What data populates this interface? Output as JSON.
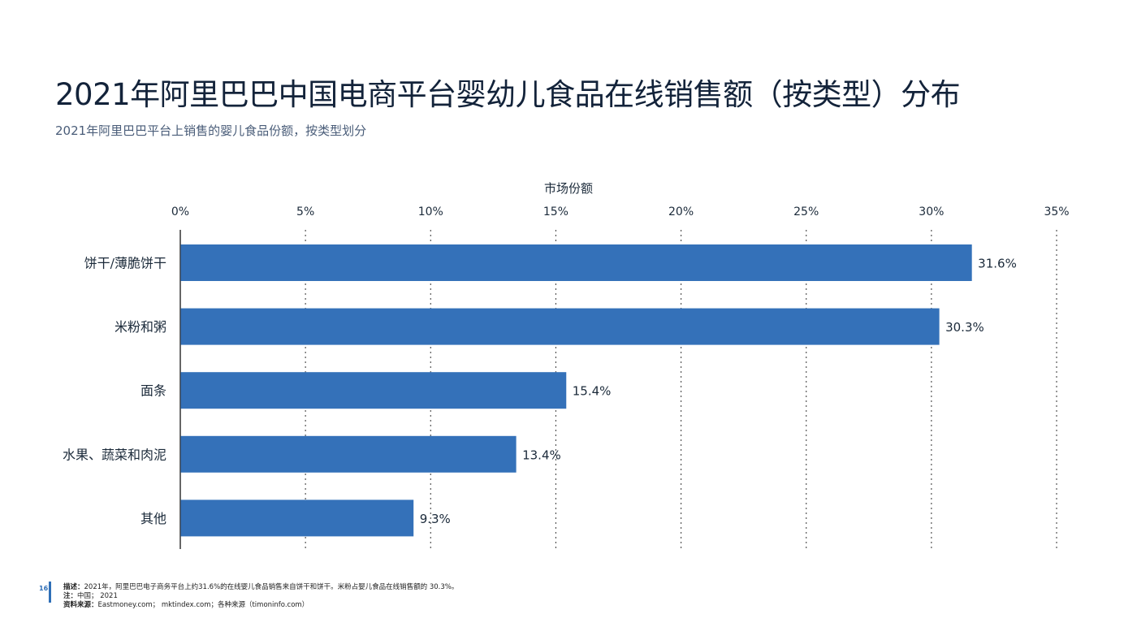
{
  "title": "2021年阿里巴巴中国电商平台婴幼儿食品在线销售额（按类型）分布",
  "subtitle": "2021年阿里巴巴平台上销售的婴儿食品份额，按类型划分",
  "chart_data": {
    "type": "bar",
    "orientation": "horizontal",
    "xlabel": "市场份额",
    "ylabel": "",
    "xlim": [
      0,
      35
    ],
    "x_ticks": [
      "0%",
      "5%",
      "10%",
      "15%",
      "20%",
      "25%",
      "30%",
      "35%"
    ],
    "categories": [
      "饼干/薄脆饼干",
      "米粉和粥",
      "面条",
      "水果、蔬菜和肉泥",
      "其他"
    ],
    "values": [
      31.6,
      30.3,
      15.4,
      13.4,
      9.3
    ],
    "value_labels": [
      "31.6%",
      "30.3%",
      "15.4%",
      "13.4%",
      "9.3%"
    ],
    "bar_color": "#3471b9",
    "grid": "vertical dotted",
    "legend": "none"
  },
  "footer": {
    "page_number": "16",
    "desc_label": "描述：",
    "desc_text": "2021年，阿里巴巴电子商务平台上约31.6%的在线婴儿食品销售来自饼干和饼干。米粉占婴儿食品在线销售额的 30.3%。",
    "note_label": "注：",
    "note_text": "中国； 2021",
    "source_label": "资料来源：",
    "source_text": "Eastmoney.com； mktindex.com；各种来源（timoninfo.com）"
  },
  "colors": {
    "accent": "#2f6fb7",
    "bar": "#3471b9",
    "title": "#13233a",
    "grid": "#555555"
  }
}
